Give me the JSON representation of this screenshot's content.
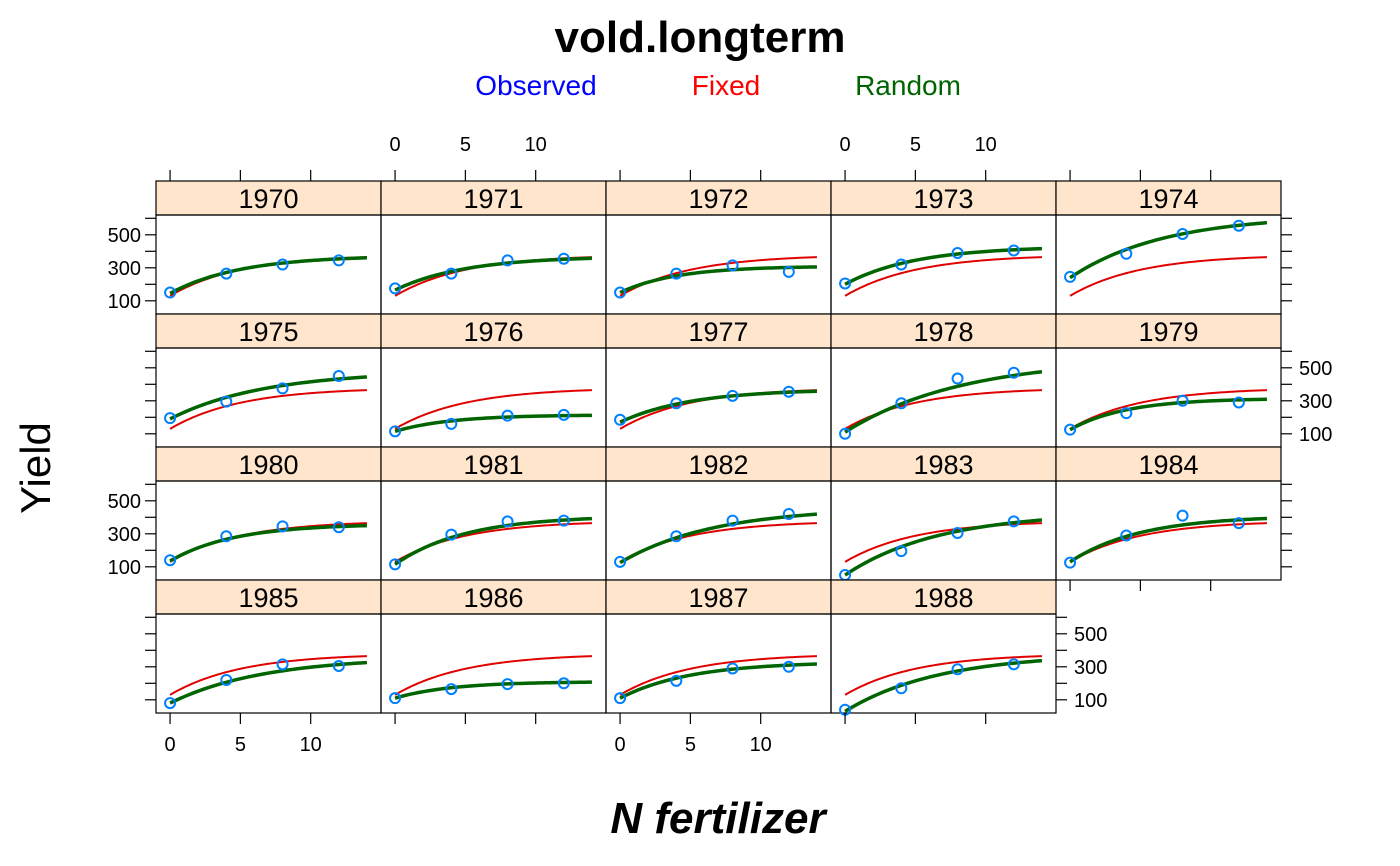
{
  "chart_data": {
    "type": "scatter",
    "title": "vold.longterm",
    "xlabel": "N fertilizer",
    "ylabel": "Yield",
    "xlim": [
      -1,
      15
    ],
    "ylim": [
      20,
      620
    ],
    "x_ticks": [
      "0",
      "5",
      "10"
    ],
    "x_tick_values": [
      0,
      5,
      10
    ],
    "y_ticks": [
      "100",
      "300",
      "500"
    ],
    "y_tick_values": [
      100,
      300,
      500
    ],
    "layout": {
      "columns": 5,
      "rows": 4
    },
    "legend": {
      "position": "top",
      "entries": [
        {
          "label": "Observed",
          "color": "#0000ff"
        },
        {
          "label": "Fixed",
          "color": "#ff0000"
        },
        {
          "label": "Random",
          "color": "#006400"
        }
      ]
    },
    "colors": {
      "strip": "#ffe5cc",
      "observed_point": "#0080ff",
      "fixed_line": "#e00000",
      "random_line": "#006400"
    },
    "x_levels": [
      0,
      4,
      8,
      12,
      14
    ],
    "fixed_curve": {
      "a": 380,
      "b": 250,
      "c": 0.2
    },
    "panels": [
      {
        "label": "1970",
        "observed": [
          [
            0,
            150
          ],
          [
            4,
            265
          ],
          [
            8,
            320
          ],
          [
            12,
            345
          ]
        ],
        "random": {
          "a": 375,
          "b": 230,
          "c": 0.2
        }
      },
      {
        "label": "1971",
        "observed": [
          [
            0,
            175
          ],
          [
            4,
            265
          ],
          [
            8,
            345
          ],
          [
            12,
            355
          ]
        ],
        "random": {
          "a": 370,
          "b": 205,
          "c": 0.2
        }
      },
      {
        "label": "1972",
        "observed": [
          [
            0,
            150
          ],
          [
            4,
            265
          ],
          [
            8,
            315
          ],
          [
            12,
            275
          ]
        ],
        "random": {
          "a": 310,
          "b": 160,
          "c": 0.25
        }
      },
      {
        "label": "1973",
        "observed": [
          [
            0,
            205
          ],
          [
            4,
            320
          ],
          [
            8,
            390
          ],
          [
            12,
            405
          ]
        ],
        "random": {
          "a": 430,
          "b": 230,
          "c": 0.2
        }
      },
      {
        "label": "1974",
        "observed": [
          [
            0,
            245
          ],
          [
            4,
            385
          ],
          [
            8,
            505
          ],
          [
            12,
            555
          ]
        ],
        "random": {
          "a": 620,
          "b": 380,
          "c": 0.15
        }
      },
      {
        "label": "1975",
        "observed": [
          [
            0,
            195
          ],
          [
            4,
            295
          ],
          [
            8,
            375
          ],
          [
            12,
            450
          ]
        ],
        "random": {
          "a": 480,
          "b": 290,
          "c": 0.15
        }
      },
      {
        "label": "1976",
        "observed": [
          [
            0,
            115
          ],
          [
            4,
            160
          ],
          [
            8,
            210
          ],
          [
            12,
            215
          ]
        ],
        "random": {
          "a": 215,
          "b": 100,
          "c": 0.25
        }
      },
      {
        "label": "1977",
        "observed": [
          [
            0,
            185
          ],
          [
            4,
            285
          ],
          [
            8,
            330
          ],
          [
            12,
            355
          ]
        ],
        "random": {
          "a": 370,
          "b": 200,
          "c": 0.2
        }
      },
      {
        "label": "1978",
        "observed": [
          [
            0,
            100
          ],
          [
            4,
            285
          ],
          [
            8,
            435
          ],
          [
            12,
            470
          ]
        ],
        "random": {
          "a": 560,
          "b": 450,
          "c": 0.12
        }
      },
      {
        "label": "1979",
        "observed": [
          [
            0,
            125
          ],
          [
            4,
            225
          ],
          [
            8,
            300
          ],
          [
            12,
            290
          ]
        ],
        "random": {
          "a": 315,
          "b": 190,
          "c": 0.25
        }
      },
      {
        "label": "1980",
        "observed": [
          [
            0,
            140
          ],
          [
            4,
            285
          ],
          [
            8,
            345
          ],
          [
            12,
            340
          ]
        ],
        "random": {
          "a": 360,
          "b": 225,
          "c": 0.22
        }
      },
      {
        "label": "1981",
        "observed": [
          [
            0,
            115
          ],
          [
            4,
            295
          ],
          [
            8,
            375
          ],
          [
            12,
            380
          ]
        ],
        "random": {
          "a": 410,
          "b": 295,
          "c": 0.2
        }
      },
      {
        "label": "1982",
        "observed": [
          [
            0,
            130
          ],
          [
            4,
            285
          ],
          [
            8,
            380
          ],
          [
            12,
            420
          ]
        ],
        "random": {
          "a": 460,
          "b": 335,
          "c": 0.15
        }
      },
      {
        "label": "1983",
        "observed": [
          [
            0,
            50
          ],
          [
            4,
            195
          ],
          [
            8,
            305
          ],
          [
            12,
            375
          ]
        ],
        "random": {
          "a": 430,
          "b": 380,
          "c": 0.15
        }
      },
      {
        "label": "1984",
        "observed": [
          [
            0,
            125
          ],
          [
            4,
            290
          ],
          [
            8,
            410
          ],
          [
            12,
            365
          ]
        ],
        "random": {
          "a": 410,
          "b": 280,
          "c": 0.2
        }
      },
      {
        "label": "1985",
        "observed": [
          [
            0,
            80
          ],
          [
            4,
            220
          ],
          [
            8,
            315
          ],
          [
            12,
            305
          ]
        ],
        "random": {
          "a": 360,
          "b": 280,
          "c": 0.15
        }
      },
      {
        "label": "1986",
        "observed": [
          [
            0,
            110
          ],
          [
            4,
            165
          ],
          [
            8,
            195
          ],
          [
            12,
            200
          ]
        ],
        "random": {
          "a": 210,
          "b": 100,
          "c": 0.25
        }
      },
      {
        "label": "1987",
        "observed": [
          [
            0,
            110
          ],
          [
            4,
            215
          ],
          [
            8,
            290
          ],
          [
            12,
            300
          ]
        ],
        "random": {
          "a": 330,
          "b": 220,
          "c": 0.2
        }
      },
      {
        "label": "1988",
        "observed": [
          [
            0,
            40
          ],
          [
            4,
            170
          ],
          [
            8,
            285
          ],
          [
            12,
            315
          ]
        ],
        "random": {
          "a": 380,
          "b": 350,
          "c": 0.15
        }
      }
    ]
  }
}
